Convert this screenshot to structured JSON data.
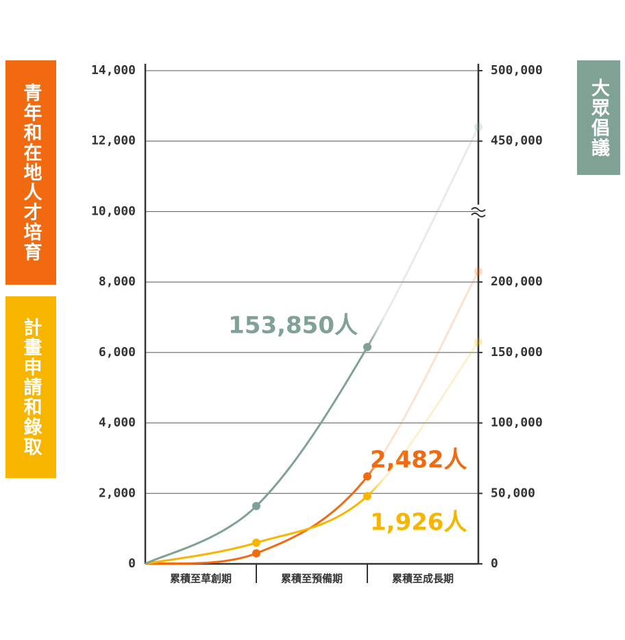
{
  "chart_data": {
    "type": "line",
    "categories": [
      null,
      "累積至草創期",
      "累積至預備期",
      "累積至成長期"
    ],
    "ylim": [
      0,
      14000
    ],
    "yticks": [
      0,
      {
        "value": 2000,
        "label": "2,000"
      },
      {
        "value": 4000,
        "label": "4,000"
      },
      {
        "value": 6000,
        "label": "6,000"
      },
      {
        "value": 8000,
        "label": "8,000"
      },
      {
        "value": 10000,
        "label": "10,000"
      },
      {
        "value": 12000,
        "label": "12,000"
      },
      {
        "value": 14000,
        "label": "14,000"
      }
    ],
    "y2lim": [
      0,
      500000
    ],
    "y2break": [
      250000,
      400000
    ],
    "y2ticks": [
      0,
      {
        "value": 50000,
        "label": "50,000"
      },
      {
        "value": 100000,
        "label": "100,000"
      },
      {
        "value": 150000,
        "label": "150,000"
      },
      {
        "value": 200000,
        "label": "200,000"
      },
      {
        "value": 450000,
        "label": "450,000"
      },
      {
        "value": 500000,
        "label": "500,000"
      }
    ],
    "grid": true,
    "series": [
      {
        "name": "青年和在地人才培育",
        "color": "#f26a10",
        "values": [
          0,
          300,
          2482,
          8300
        ],
        "value_labels": [
          null,
          null,
          "2,482人",
          null
        ]
      },
      {
        "name": "計畫申請和錄取",
        "color": "#f7b500",
        "values": [
          0,
          600,
          1926,
          6300
        ],
        "value_labels": [
          null,
          null,
          "1,926人",
          null
        ]
      },
      {
        "name": "大眾倡議",
        "color": "#7fa294",
        "axis": "y2",
        "values": [
          0,
          41000,
          153850,
          460000
        ],
        "value_labels": [
          null,
          null,
          "153,850人",
          null
        ]
      }
    ]
  }
}
